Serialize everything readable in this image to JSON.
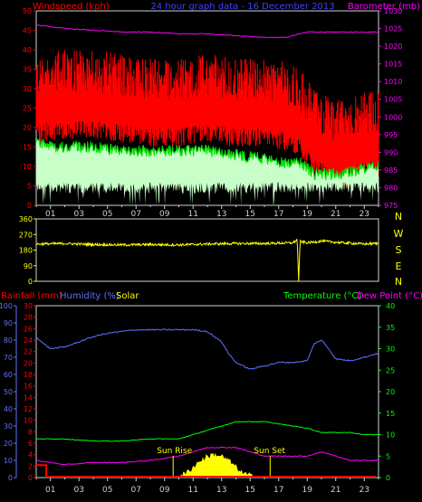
{
  "colors": {
    "background": "#000000",
    "frame": "#d0d0d0",
    "windspeed": "#ff0000",
    "wind_avg": "#00e000",
    "wind_fill": "#c8ffc8",
    "barometer": "#ff00ff",
    "title": "#4040ff",
    "direction": "#ffff00",
    "rainfall": "#ff0000",
    "humidity": "#6070ff",
    "solar": "#ffff00",
    "temperature": "#00ff00",
    "dewpoint": "#ff00ff"
  },
  "header": {
    "title": "24 hour graph data - 16 December 2013",
    "windspeed_label": "Windspeed (kph)",
    "barometer_label": "Barometer (mb)"
  },
  "lower_header": {
    "rainfall_label": "Rainfall (mm)",
    "humidity_label": "Humidity (%)",
    "solar_label": "Solar",
    "temperature_label": "Temperature (°C)",
    "dewpoint_label": "Dew Point (°C)"
  },
  "x_ticks": [
    "01",
    "03",
    "05",
    "07",
    "09",
    "11",
    "13",
    "15",
    "17",
    "19",
    "21",
    "23"
  ],
  "compass": [
    "N",
    "W",
    "S",
    "E",
    "N"
  ],
  "annotations": {
    "sunrise": "Sun Rise",
    "sunset": "Sun Set"
  },
  "chart_data": [
    {
      "type": "line",
      "panel": "wind-barometer",
      "xlim": [
        0,
        24
      ],
      "left_axis": {
        "ticks": [
          0,
          5,
          10,
          15,
          20,
          25,
          30,
          35,
          40,
          45,
          50
        ],
        "ylim": [
          0,
          50
        ]
      },
      "right_axis": {
        "ticks": [
          975,
          980,
          985,
          990,
          995,
          1000,
          1005,
          1010,
          1015,
          1020,
          1025,
          1030
        ],
        "ylim": [
          975,
          1030
        ]
      },
      "series": [
        {
          "name": "Windspeed (kph)",
          "x": [
            0,
            2,
            4,
            6,
            8,
            10,
            12,
            14,
            16,
            17.5,
            18.5,
            19.5,
            20.5,
            21.5,
            22.5,
            23.8
          ],
          "values": [
            24,
            25,
            25,
            24,
            23,
            23,
            24,
            23,
            23,
            22,
            20,
            15,
            13,
            12,
            14,
            15
          ]
        },
        {
          "name": "Gust average",
          "x": [
            0,
            2,
            4,
            6,
            8,
            10,
            12,
            14,
            16,
            17.5,
            18.5,
            19.5,
            20.5,
            21.5,
            22.5,
            23.8
          ],
          "values": [
            16,
            15,
            15,
            14,
            14,
            14,
            14,
            13,
            12,
            11,
            11,
            8,
            8,
            8,
            9,
            10
          ]
        },
        {
          "name": "Barometer (mb)",
          "x": [
            0,
            2,
            4,
            6,
            8,
            10,
            12,
            14,
            16,
            17.5,
            18,
            19,
            21,
            23,
            23.8
          ],
          "values": [
            1026,
            1025,
            1024.5,
            1024,
            1024,
            1023.5,
            1023.5,
            1023,
            1022.5,
            1022.5,
            1023,
            1024,
            1024,
            1024,
            1024
          ]
        }
      ]
    },
    {
      "type": "line",
      "panel": "wind-direction",
      "xlim": [
        0,
        24
      ],
      "left_axis": {
        "ticks": [
          0,
          90,
          180,
          270,
          360
        ],
        "ylim": [
          0,
          360
        ]
      },
      "series": [
        {
          "name": "Wind direction",
          "x": [
            0,
            2,
            4,
            6,
            8,
            10,
            12,
            14,
            16,
            18,
            18.3,
            18.4,
            18.5,
            19,
            20,
            21,
            22,
            23,
            23.8
          ],
          "values": [
            215,
            218,
            212,
            210,
            212,
            210,
            215,
            218,
            218,
            222,
            240,
            0,
            230,
            222,
            232,
            225,
            220,
            215,
            218
          ]
        }
      ]
    },
    {
      "type": "line",
      "panel": "temperature-humidity",
      "xlim": [
        0,
        24
      ],
      "rainfall_axis": {
        "ticks": [
          0,
          2,
          4,
          6,
          8,
          10,
          12,
          14,
          16,
          18,
          20,
          22,
          24,
          26,
          28,
          30
        ],
        "ylim": [
          0,
          30
        ]
      },
      "humidity_axis": {
        "ticks": [
          0,
          10,
          20,
          30,
          40,
          50,
          60,
          70,
          80,
          90,
          100
        ],
        "ylim": [
          0,
          100
        ]
      },
      "temperature_axis": {
        "ticks": [
          0,
          5,
          10,
          15,
          20,
          25,
          30,
          35,
          40
        ],
        "ylim": [
          0,
          40
        ]
      },
      "series": [
        {
          "name": "Humidity (%)",
          "x": [
            0,
            0.5,
            1,
            2,
            3,
            4,
            5,
            6,
            7,
            8,
            9,
            10,
            11,
            12,
            13,
            13.5,
            14,
            15,
            16,
            17,
            18,
            19,
            19.5,
            20,
            20.5,
            21,
            22,
            23,
            23.8
          ],
          "values": [
            82,
            78,
            75,
            76,
            79,
            82,
            84,
            85,
            86,
            86,
            86,
            86,
            86,
            85,
            79,
            72,
            67,
            63,
            65,
            67,
            67,
            68,
            78,
            80,
            75,
            69,
            68,
            70,
            72
          ]
        },
        {
          "name": "Temperature (°C)",
          "x": [
            0,
            2,
            4,
            6,
            8,
            10,
            11,
            12,
            13,
            14,
            15,
            16,
            17,
            18,
            19,
            20,
            21,
            22,
            23,
            23.8
          ],
          "values": [
            9,
            9,
            8.5,
            8.5,
            9,
            9,
            10,
            11,
            12,
            13,
            13,
            13,
            12.5,
            12,
            11.5,
            10.5,
            10.5,
            10.5,
            10,
            10
          ]
        },
        {
          "name": "Dew Point (°C)",
          "x": [
            0,
            2,
            4,
            6,
            8,
            10,
            11,
            12,
            13,
            14,
            15,
            16,
            17,
            18,
            19,
            20,
            21,
            22,
            23,
            23.8
          ],
          "values": [
            4,
            3,
            3.5,
            3.5,
            4,
            5,
            6,
            7,
            7,
            7,
            6,
            5,
            5,
            5,
            5,
            6,
            5,
            4,
            4,
            4
          ]
        },
        {
          "name": "Solar",
          "x": [
            0,
            9.5,
            10,
            10.5,
            11,
            11.5,
            12,
            12.5,
            13,
            13.5,
            14,
            14.5,
            15,
            15.5,
            23.8
          ],
          "values": [
            0,
            0,
            0.5,
            1,
            2.5,
            4,
            5,
            5.5,
            5,
            4,
            2.5,
            1,
            0.5,
            0,
            0
          ]
        },
        {
          "name": "Rainfall (mm)",
          "x": [
            0,
            0.7,
            0.7,
            23.8
          ],
          "values": [
            2,
            2,
            0,
            0
          ]
        }
      ]
    }
  ]
}
